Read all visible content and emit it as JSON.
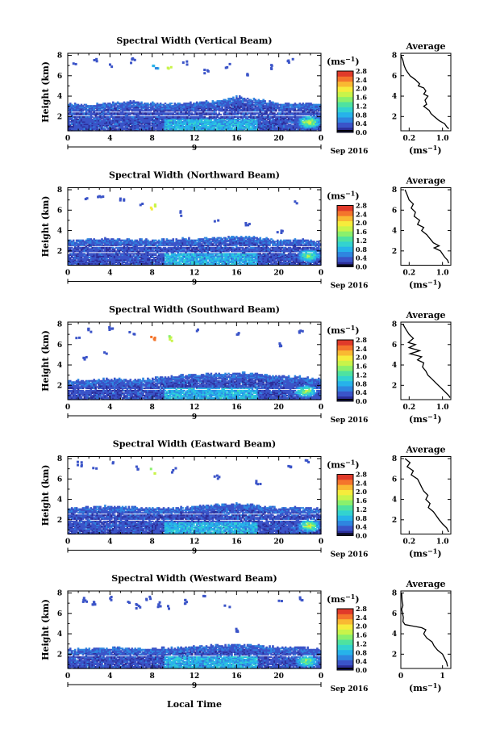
{
  "figure": {
    "colorbar_unit": "(ms",
    "colorbar_unit_exp": "−1",
    "date_label": "Sep 2016",
    "day_label": "9",
    "xlabel": "Local Time",
    "ylabel": "Height (km)",
    "avg_title": "Average",
    "avg_unit": "(ms",
    "avg_unit_exp": "−1",
    "colormap": [
      "#2d2f9a",
      "#3b54c8",
      "#2f86e0",
      "#27b3ea",
      "#33d3d0",
      "#4fe2a0",
      "#8af06c",
      "#c9f44a",
      "#f6ec3c",
      "#f9b933",
      "#f4752c",
      "#e03a2a"
    ]
  },
  "chart_data": [
    {
      "type": "heatmap",
      "title": "Spectral Width (Vertical Beam)",
      "x_ticks": [
        "0",
        "4",
        "8",
        "12",
        "16",
        "20",
        "0"
      ],
      "y_ticks": [
        "2",
        "4",
        "6",
        "8"
      ],
      "colorbar_ticks": [
        "0.0",
        "0.4",
        "0.8",
        "1.2",
        "1.6",
        "2.0",
        "2.4",
        "2.8"
      ],
      "cb_range": [
        0,
        2.8
      ],
      "xlim": [
        0,
        24
      ],
      "ylim": [
        0.6,
        8.2
      ],
      "top_layer": [
        [
          0,
          3.2
        ],
        [
          2,
          3.1
        ],
        [
          4,
          3.3
        ],
        [
          6,
          3.4
        ],
        [
          8,
          3.3
        ],
        [
          10,
          3.2
        ],
        [
          12,
          3.3
        ],
        [
          14,
          3.5
        ],
        [
          16,
          3.9
        ],
        [
          18,
          3.6
        ],
        [
          20,
          3.2
        ],
        [
          22,
          3.3
        ],
        [
          24,
          3.1
        ]
      ],
      "gaps": [
        2.4,
        2.0
      ],
      "hotspot": {
        "x": 22.8,
        "y": 1.4,
        "value": 2.6
      },
      "sparse_high": [
        [
          0.5,
          7.4,
          0.3
        ],
        [
          2.5,
          7.5,
          0.3
        ],
        [
          4.0,
          7.1,
          0.3
        ],
        [
          6.0,
          7.6,
          0.3
        ],
        [
          8.2,
          6.9,
          0.6
        ],
        [
          9.6,
          6.8,
          1.6
        ],
        [
          11.0,
          7.3,
          0.3
        ],
        [
          13.0,
          6.5,
          0.3
        ],
        [
          15.0,
          7.1,
          0.3
        ],
        [
          17.0,
          6.2,
          0.3
        ],
        [
          19.0,
          7.0,
          0.3
        ],
        [
          21.0,
          7.6,
          0.3
        ]
      ],
      "avg": {
        "xlim": [
          0,
          1.2
        ],
        "x_ticks": [
          "0.2",
          "1.0"
        ],
        "y_ticks": [
          "2",
          "4",
          "6",
          "8"
        ],
        "ylim": [
          0.6,
          8.2
        ],
        "profile": [
          [
            8.0,
            0.0
          ],
          [
            7.5,
            0.05
          ],
          [
            7.0,
            0.08
          ],
          [
            6.6,
            0.12
          ],
          [
            6.4,
            0.15
          ],
          [
            6.0,
            0.22
          ],
          [
            5.6,
            0.35
          ],
          [
            5.2,
            0.45
          ],
          [
            5.0,
            0.42
          ],
          [
            4.8,
            0.55
          ],
          [
            4.5,
            0.6
          ],
          [
            4.2,
            0.55
          ],
          [
            4.0,
            0.65
          ],
          [
            3.6,
            0.58
          ],
          [
            3.2,
            0.62
          ],
          [
            3.0,
            0.55
          ],
          [
            2.6,
            0.68
          ],
          [
            2.3,
            0.72
          ],
          [
            2.0,
            0.8
          ],
          [
            1.6,
            0.92
          ],
          [
            1.3,
            1.05
          ],
          [
            1.0,
            1.1
          ],
          [
            0.8,
            1.15
          ]
        ]
      }
    },
    {
      "type": "heatmap",
      "title": "Spectral Width (Northward Beam)",
      "x_ticks": [
        "0",
        "4",
        "8",
        "12",
        "16",
        "20",
        "0"
      ],
      "y_ticks": [
        "2",
        "4",
        "6",
        "8"
      ],
      "colorbar_ticks": [
        "0.0",
        "0.4",
        "0.8",
        "1.2",
        "1.6",
        "2.0",
        "2.4",
        "2.8"
      ],
      "cb_range": [
        0,
        2.8
      ],
      "xlim": [
        0,
        24
      ],
      "ylim": [
        0.6,
        8.2
      ],
      "top_layer": [
        [
          0,
          3.0
        ],
        [
          2,
          3.1
        ],
        [
          4,
          3.2
        ],
        [
          6,
          3.1
        ],
        [
          8,
          3.0
        ],
        [
          10,
          3.1
        ],
        [
          12,
          3.2
        ],
        [
          14,
          3.2
        ],
        [
          16,
          3.4
        ],
        [
          18,
          3.3
        ],
        [
          20,
          3.0
        ],
        [
          22,
          3.1
        ],
        [
          24,
          2.8
        ]
      ],
      "gaps": [
        2.4,
        1.8
      ],
      "hotspot": {
        "x": 22.8,
        "y": 1.5,
        "value": 2.2
      },
      "sparse_high": [
        [
          1.5,
          7.3,
          0.3
        ],
        [
          3.0,
          7.6,
          0.3
        ],
        [
          5.0,
          7.0,
          0.3
        ],
        [
          7.0,
          6.6,
          0.3
        ],
        [
          8.0,
          6.4,
          1.8
        ],
        [
          10.5,
          5.8,
          0.3
        ],
        [
          14.0,
          5.0,
          0.3
        ],
        [
          17.0,
          4.6,
          0.3
        ],
        [
          20.0,
          4.0,
          0.3
        ],
        [
          21.5,
          6.8,
          0.3
        ]
      ],
      "avg": {
        "xlim": [
          0,
          1.2
        ],
        "x_ticks": [
          "0.2",
          "1.0"
        ],
        "y_ticks": [
          "2",
          "4",
          "6",
          "8"
        ],
        "ylim": [
          0.6,
          8.2
        ],
        "profile": [
          [
            8.0,
            0.1
          ],
          [
            7.5,
            0.15
          ],
          [
            7.0,
            0.2
          ],
          [
            6.6,
            0.3
          ],
          [
            6.2,
            0.25
          ],
          [
            5.8,
            0.35
          ],
          [
            5.4,
            0.32
          ],
          [
            5.0,
            0.45
          ],
          [
            4.6,
            0.4
          ],
          [
            4.3,
            0.55
          ],
          [
            4.0,
            0.5
          ],
          [
            3.6,
            0.62
          ],
          [
            3.2,
            0.7
          ],
          [
            2.8,
            0.78
          ],
          [
            2.5,
            0.92
          ],
          [
            2.3,
            0.8
          ],
          [
            2.0,
            0.95
          ],
          [
            1.7,
            1.0
          ],
          [
            1.4,
            1.05
          ],
          [
            1.1,
            1.12
          ],
          [
            0.8,
            1.15
          ]
        ]
      }
    },
    {
      "type": "heatmap",
      "title": "Spectral Width (Southward Beam)",
      "x_ticks": [
        "0",
        "4",
        "8",
        "12",
        "16",
        "20",
        "0"
      ],
      "y_ticks": [
        "2",
        "4",
        "6",
        "8"
      ],
      "colorbar_ticks": [
        "0.0",
        "0.4",
        "0.8",
        "1.2",
        "1.6",
        "2.0",
        "2.4",
        "2.8"
      ],
      "cb_range": [
        0,
        2.8
      ],
      "xlim": [
        0,
        24
      ],
      "ylim": [
        0.6,
        8.2
      ],
      "top_layer": [
        [
          0,
          2.4
        ],
        [
          2,
          2.5
        ],
        [
          4,
          2.6
        ],
        [
          6,
          2.5
        ],
        [
          8,
          2.7
        ],
        [
          10,
          2.9
        ],
        [
          12,
          3.0
        ],
        [
          14,
          3.1
        ],
        [
          16,
          3.2
        ],
        [
          18,
          3.1
        ],
        [
          20,
          2.9
        ],
        [
          22,
          2.8
        ],
        [
          24,
          2.6
        ]
      ],
      "gaps": [
        1.6
      ],
      "hotspot": {
        "x": 22.5,
        "y": 1.4,
        "value": 2.3
      },
      "sparse_high": [
        [
          0.8,
          6.8,
          0.3
        ],
        [
          2.0,
          7.5,
          0.3
        ],
        [
          4.0,
          7.6,
          0.3
        ],
        [
          6.0,
          7.2,
          0.3
        ],
        [
          8.0,
          6.8,
          2.4
        ],
        [
          9.6,
          6.7,
          1.6
        ],
        [
          12.0,
          7.5,
          0.3
        ],
        [
          16.0,
          7.3,
          0.3
        ],
        [
          20.0,
          6.0,
          0.3
        ],
        [
          22.0,
          7.4,
          0.3
        ],
        [
          1.5,
          4.8,
          0.3
        ],
        [
          3.5,
          5.2,
          0.3
        ]
      ],
      "avg": {
        "xlim": [
          0,
          1.2
        ],
        "x_ticks": [
          "0.2",
          "1.0"
        ],
        "y_ticks": [
          "2",
          "4",
          "6",
          "8"
        ],
        "ylim": [
          0.6,
          8.2
        ],
        "profile": [
          [
            8.0,
            0.05
          ],
          [
            7.5,
            0.12
          ],
          [
            7.0,
            0.2
          ],
          [
            6.6,
            0.3
          ],
          [
            6.2,
            0.18
          ],
          [
            6.0,
            0.35
          ],
          [
            5.7,
            0.2
          ],
          [
            5.4,
            0.45
          ],
          [
            5.1,
            0.22
          ],
          [
            4.8,
            0.5
          ],
          [
            4.5,
            0.4
          ],
          [
            4.2,
            0.55
          ],
          [
            3.8,
            0.52
          ],
          [
            3.4,
            0.6
          ],
          [
            3.0,
            0.65
          ],
          [
            2.6,
            0.75
          ],
          [
            2.2,
            0.85
          ],
          [
            1.8,
            0.95
          ],
          [
            1.4,
            1.05
          ],
          [
            1.0,
            1.15
          ],
          [
            0.8,
            1.18
          ]
        ]
      }
    },
    {
      "type": "heatmap",
      "title": "Spectral Width (Eastward Beam)",
      "x_ticks": [
        "0",
        "4",
        "8",
        "12",
        "16",
        "20",
        "0"
      ],
      "y_ticks": [
        "2",
        "4",
        "6",
        "8"
      ],
      "colorbar_ticks": [
        "0.0",
        "0.4",
        "0.8",
        "1.2",
        "1.6",
        "2.0",
        "2.4",
        "2.8"
      ],
      "cb_range": [
        0,
        2.8
      ],
      "xlim": [
        0,
        24
      ],
      "ylim": [
        0.6,
        8.2
      ],
      "top_layer": [
        [
          0,
          3.1
        ],
        [
          2,
          3.2
        ],
        [
          4,
          3.3
        ],
        [
          6,
          3.2
        ],
        [
          8,
          3.1
        ],
        [
          10,
          3.2
        ],
        [
          12,
          3.3
        ],
        [
          14,
          3.4
        ],
        [
          16,
          3.6
        ],
        [
          18,
          3.4
        ],
        [
          20,
          3.1
        ],
        [
          22,
          3.2
        ],
        [
          24,
          3.0
        ]
      ],
      "gaps": [
        2.5,
        1.9
      ],
      "hotspot": {
        "x": 22.8,
        "y": 1.4,
        "value": 2.5
      },
      "sparse_high": [
        [
          1.0,
          7.6,
          0.3
        ],
        [
          2.5,
          7.3,
          0.3
        ],
        [
          4.0,
          7.6,
          0.3
        ],
        [
          6.5,
          7.2,
          0.3
        ],
        [
          8.0,
          6.9,
          1.6
        ],
        [
          10.0,
          7.0,
          0.3
        ],
        [
          14.0,
          6.2,
          0.3
        ],
        [
          18.0,
          5.8,
          0.3
        ],
        [
          21.0,
          7.5,
          0.3
        ],
        [
          22.5,
          7.7,
          0.3
        ]
      ],
      "avg": {
        "xlim": [
          0,
          1.2
        ],
        "x_ticks": [
          "0.2",
          "1.0"
        ],
        "y_ticks": [
          "2",
          "4",
          "6",
          "8"
        ],
        "ylim": [
          0.6,
          8.2
        ],
        "profile": [
          [
            8.0,
            0.1
          ],
          [
            7.6,
            0.22
          ],
          [
            7.2,
            0.15
          ],
          [
            6.8,
            0.3
          ],
          [
            6.4,
            0.25
          ],
          [
            6.0,
            0.4
          ],
          [
            5.6,
            0.45
          ],
          [
            5.2,
            0.5
          ],
          [
            4.8,
            0.55
          ],
          [
            4.4,
            0.65
          ],
          [
            4.0,
            0.6
          ],
          [
            3.6,
            0.7
          ],
          [
            3.2,
            0.66
          ],
          [
            2.8,
            0.78
          ],
          [
            2.4,
            0.85
          ],
          [
            2.0,
            0.92
          ],
          [
            1.6,
            1.0
          ],
          [
            1.2,
            1.1
          ],
          [
            0.8,
            1.15
          ]
        ]
      }
    },
    {
      "type": "heatmap",
      "title": "Spectral Width (Westward Beam)",
      "x_ticks": [
        "0",
        "4",
        "8",
        "12",
        "16",
        "20",
        "0"
      ],
      "y_ticks": [
        "2",
        "4",
        "6",
        "8"
      ],
      "colorbar_ticks": [
        "0.0",
        "0.4",
        "0.8",
        "1.2",
        "1.6",
        "2.0",
        "2.4",
        "2.8"
      ],
      "cb_range": [
        0,
        2.8
      ],
      "xlim": [
        0,
        24
      ],
      "ylim": [
        0.6,
        8.2
      ],
      "top_layer": [
        [
          0,
          2.4
        ],
        [
          2,
          2.5
        ],
        [
          4,
          2.6
        ],
        [
          6,
          2.5
        ],
        [
          8,
          2.5
        ],
        [
          10,
          2.6
        ],
        [
          12,
          2.7
        ],
        [
          14,
          2.8
        ],
        [
          16,
          2.9
        ],
        [
          18,
          2.8
        ],
        [
          20,
          2.6
        ],
        [
          22,
          2.7
        ],
        [
          24,
          2.4
        ]
      ],
      "gaps": [
        1.8
      ],
      "hotspot": {
        "x": 22.6,
        "y": 1.3,
        "value": 2.2
      },
      "sparse_high": [
        [
          1.5,
          7.4,
          0.3
        ],
        [
          2.5,
          7.0,
          0.3
        ],
        [
          4.0,
          7.6,
          0.3
        ],
        [
          5.5,
          7.2,
          0.3
        ],
        [
          6.5,
          6.8,
          0.3
        ],
        [
          7.5,
          7.6,
          0.3
        ],
        [
          8.5,
          7.0,
          0.3
        ],
        [
          9.5,
          6.6,
          0.3
        ],
        [
          11.0,
          7.3,
          0.3
        ],
        [
          13.0,
          7.6,
          0.3
        ],
        [
          15.0,
          6.8,
          0.3
        ],
        [
          16.0,
          4.5,
          0.3
        ],
        [
          20.0,
          7.4,
          0.3
        ],
        [
          22.0,
          7.5,
          0.3
        ]
      ],
      "avg": {
        "xlim": [
          0,
          1.2
        ],
        "x_ticks": [
          "0",
          "1"
        ],
        "y_ticks": [
          "2",
          "4",
          "6",
          "8"
        ],
        "ylim": [
          0.6,
          8.2
        ],
        "profile": [
          [
            8.0,
            0.02
          ],
          [
            7.2,
            0.03
          ],
          [
            6.8,
            0.05
          ],
          [
            6.4,
            0.02
          ],
          [
            6.0,
            0.04
          ],
          [
            5.6,
            0.06
          ],
          [
            5.2,
            0.05
          ],
          [
            4.9,
            0.1
          ],
          [
            4.6,
            0.5
          ],
          [
            4.4,
            0.6
          ],
          [
            4.0,
            0.55
          ],
          [
            3.6,
            0.62
          ],
          [
            3.2,
            0.75
          ],
          [
            2.8,
            0.8
          ],
          [
            2.4,
            0.88
          ],
          [
            2.0,
            1.0
          ],
          [
            1.6,
            1.05
          ],
          [
            1.2,
            1.1
          ],
          [
            0.8,
            1.12
          ]
        ]
      }
    }
  ]
}
